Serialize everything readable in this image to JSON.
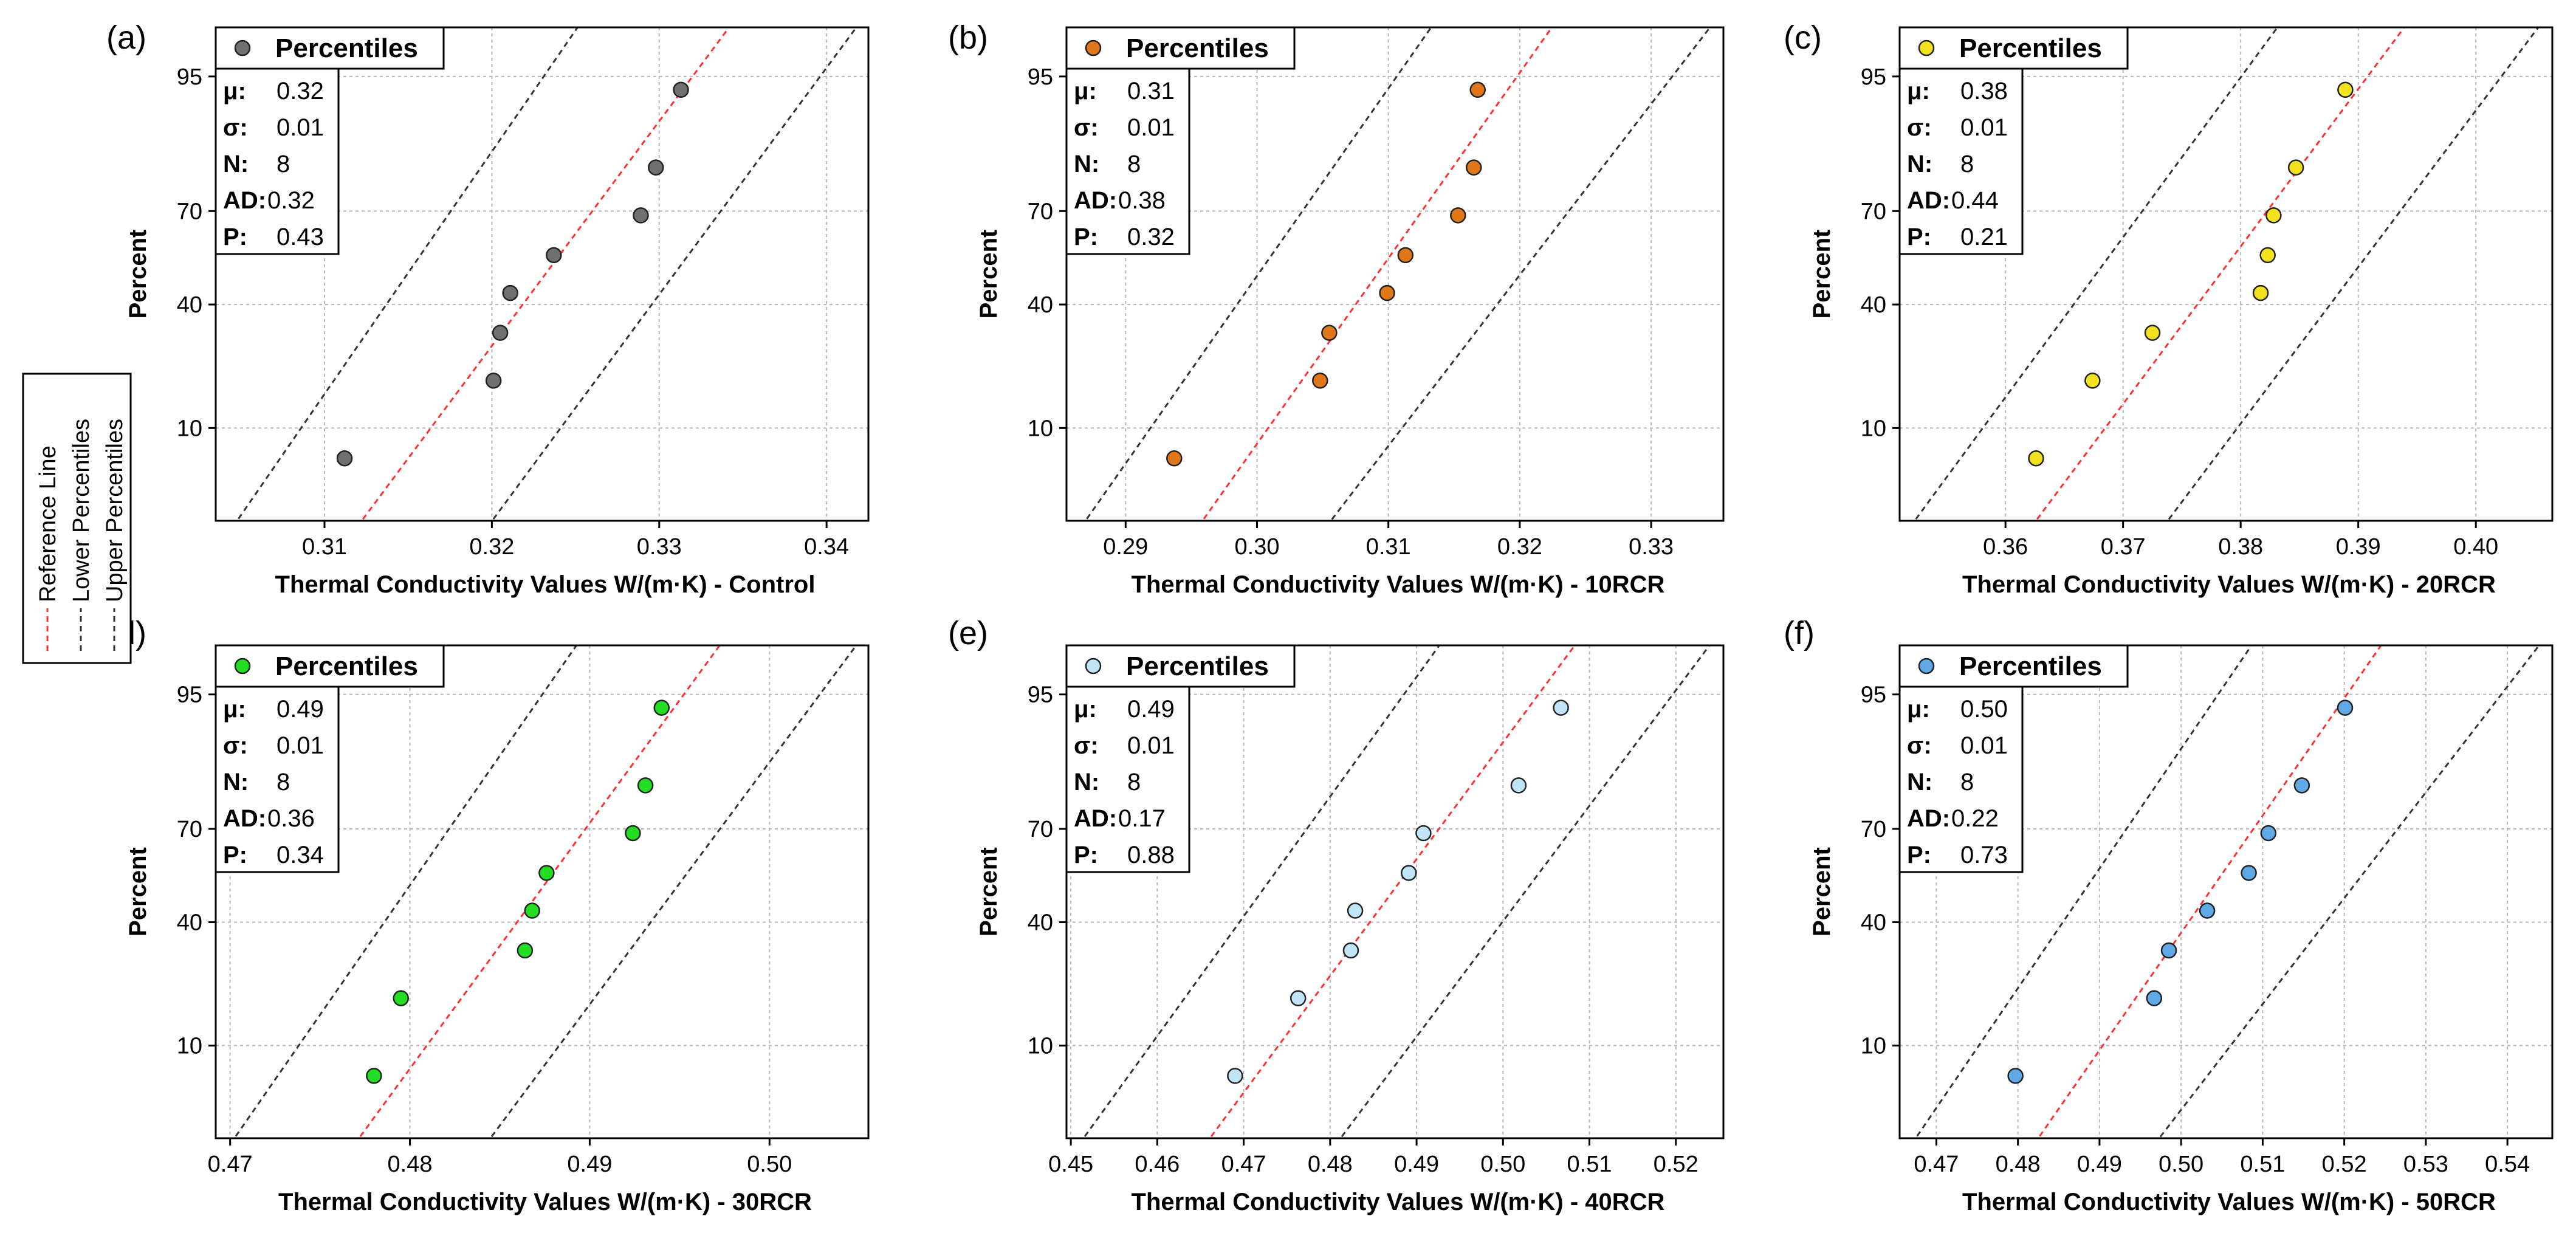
{
  "shared": {
    "legend_title": "Percentiles",
    "ylabel": "Percent",
    "ytick_labels": [
      "10",
      "40",
      "70",
      "95"
    ],
    "stat_keys": [
      "μ:",
      "σ:",
      "N:",
      "AD:",
      "P:"
    ],
    "colors": {
      "reference": "#ff3030",
      "bounds": "#333333",
      "grid": "#b8b8b8"
    }
  },
  "side_legend": [
    {
      "label": "Reference Line",
      "color": "#ff3030"
    },
    {
      "label": "Lower Percentiles",
      "color": "#333333"
    },
    {
      "label": "Upper Percentiles",
      "color": "#333333"
    }
  ],
  "chart_data": [
    {
      "panel": "(a)",
      "type": "scatter",
      "title": "",
      "xlabel": "Thermal Conductivity Values W/(m·K) - Control",
      "ylabel": "Percent",
      "marker_color": "#707070",
      "xlim": [
        0.3035,
        0.3425
      ],
      "xticks": [
        "0.31",
        "0.32",
        "0.33",
        "0.34"
      ],
      "y_percent": [
        6.25,
        18.75,
        31.25,
        43.75,
        56.25,
        68.75,
        81.25,
        93.75
      ],
      "x": [
        0.3112,
        0.3201,
        0.3205,
        0.3211,
        0.3237,
        0.3289,
        0.3298,
        0.3313
      ],
      "reference_line": {
        "x_at_low": 0.3116,
        "x_at_high": 0.3348
      },
      "lower_band": {
        "x_at_low": 0.3042,
        "x_at_high": 0.3257
      },
      "upper_band": {
        "x_at_low": 0.3194,
        "x_at_high": 0.3424
      },
      "stats": [
        "0.32",
        "0.01",
        "8",
        "0.32",
        "0.43"
      ]
    },
    {
      "panel": "(b)",
      "type": "scatter",
      "title": "",
      "xlabel": "Thermal Conductivity Values W/(m·K) - 10RCR",
      "ylabel": "Percent",
      "marker_color": "#e0781a",
      "xlim": [
        0.2855,
        0.3355
      ],
      "xticks": [
        "0.29",
        "0.30",
        "0.31",
        "0.32",
        "0.33"
      ],
      "y_percent": [
        6.25,
        18.75,
        31.25,
        43.75,
        56.25,
        68.75,
        81.25,
        93.75
      ],
      "x": [
        0.2937,
        0.3048,
        0.3055,
        0.3099,
        0.3113,
        0.3153,
        0.3165,
        0.3168
      ],
      "reference_line": {
        "x_at_low": 0.2951,
        "x_at_high": 0.3232
      },
      "lower_band": {
        "x_at_low": 0.2862,
        "x_at_high": 0.314
      },
      "upper_band": {
        "x_at_low": 0.3048,
        "x_at_high": 0.3353
      },
      "stats": [
        "0.31",
        "0.01",
        "8",
        "0.38",
        "0.32"
      ]
    },
    {
      "panel": "(c)",
      "type": "scatter",
      "title": "",
      "xlabel": "Thermal Conductivity Values W/(m·K) - 20RCR",
      "ylabel": "Percent",
      "marker_color": "#f2e21e",
      "xlim": [
        0.351,
        0.4065
      ],
      "xticks": [
        "0.36",
        "0.37",
        "0.38",
        "0.39",
        "0.40"
      ],
      "y_percent": [
        6.25,
        18.75,
        31.25,
        43.75,
        56.25,
        68.75,
        81.25,
        93.75
      ],
      "x": [
        0.3626,
        0.3674,
        0.3725,
        0.3817,
        0.3823,
        0.3828,
        0.3847,
        0.3889
      ],
      "reference_line": {
        "x_at_low": 0.3617,
        "x_at_high": 0.3948
      },
      "lower_band": {
        "x_at_low": 0.3514,
        "x_at_high": 0.384
      },
      "upper_band": {
        "x_at_low": 0.3729,
        "x_at_high": 0.4062
      },
      "stats": [
        "0.38",
        "0.01",
        "8",
        "0.44",
        "0.21"
      ]
    },
    {
      "panel": "(d)",
      "type": "scatter",
      "title": "",
      "xlabel": "Thermal Conductivity Values W/(m·K) - 30RCR",
      "ylabel": "Percent",
      "marker_color": "#22dd22",
      "xlim": [
        0.4692,
        0.5055
      ],
      "xticks": [
        "0.47",
        "0.48",
        "0.49",
        "0.50"
      ],
      "y_percent": [
        6.25,
        18.75,
        31.25,
        43.75,
        56.25,
        68.75,
        81.25,
        93.75
      ],
      "x": [
        0.478,
        0.4795,
        0.4864,
        0.4868,
        0.4876,
        0.4924,
        0.4931,
        0.494
      ],
      "reference_line": {
        "x_at_low": 0.4766,
        "x_at_high": 0.4978
      },
      "lower_band": {
        "x_at_low": 0.4697,
        "x_at_high": 0.4898
      },
      "upper_band": {
        "x_at_low": 0.4839,
        "x_at_high": 0.5054
      },
      "stats": [
        "0.49",
        "0.01",
        "8",
        "0.36",
        "0.34"
      ]
    },
    {
      "panel": "(e)",
      "type": "scatter",
      "title": "",
      "xlabel": "Thermal Conductivity Values W/(m·K) - 40RCR",
      "ylabel": "Percent",
      "marker_color": "#bfe5f7",
      "xlim": [
        0.4495,
        0.5255
      ],
      "xticks": [
        "0.45",
        "0.46",
        "0.47",
        "0.48",
        "0.49",
        "0.50",
        "0.51",
        "0.52"
      ],
      "y_percent": [
        6.25,
        18.75,
        31.25,
        43.75,
        56.25,
        68.75,
        81.25,
        93.75
      ],
      "x": [
        0.469,
        0.4763,
        0.4824,
        0.4829,
        0.4891,
        0.4908,
        0.5018,
        0.5067
      ],
      "reference_line": {
        "x_at_low": 0.4649,
        "x_at_high": 0.5095
      },
      "lower_band": {
        "x_at_low": 0.4503,
        "x_at_high": 0.4938
      },
      "upper_band": {
        "x_at_low": 0.48,
        "x_at_high": 0.5251
      },
      "stats": [
        "0.49",
        "0.01",
        "8",
        "0.17",
        "0.88"
      ]
    },
    {
      "panel": "(f)",
      "type": "scatter",
      "title": "",
      "xlabel": "Thermal Conductivity Values W/(m·K) - 50RCR",
      "ylabel": "Percent",
      "marker_color": "#5ea9e6",
      "xlim": [
        0.4655,
        0.5455
      ],
      "xticks": [
        "0.47",
        "0.48",
        "0.49",
        "0.50",
        "0.51",
        "0.52",
        "0.53",
        "0.54"
      ],
      "y_percent": [
        6.25,
        18.75,
        31.25,
        43.75,
        56.25,
        68.75,
        81.25,
        93.75
      ],
      "x": [
        0.4797,
        0.4967,
        0.4985,
        0.5032,
        0.5083,
        0.5107,
        0.5148,
        0.5201
      ],
      "reference_line": {
        "x_at_low": 0.4813,
        "x_at_high": 0.5257
      },
      "lower_band": {
        "x_at_low": 0.4663,
        "x_at_high": 0.5098
      },
      "upper_band": {
        "x_at_low": 0.496,
        "x_at_high": 0.5452
      },
      "stats": [
        "0.50",
        "0.01",
        "8",
        "0.22",
        "0.73"
      ]
    }
  ]
}
